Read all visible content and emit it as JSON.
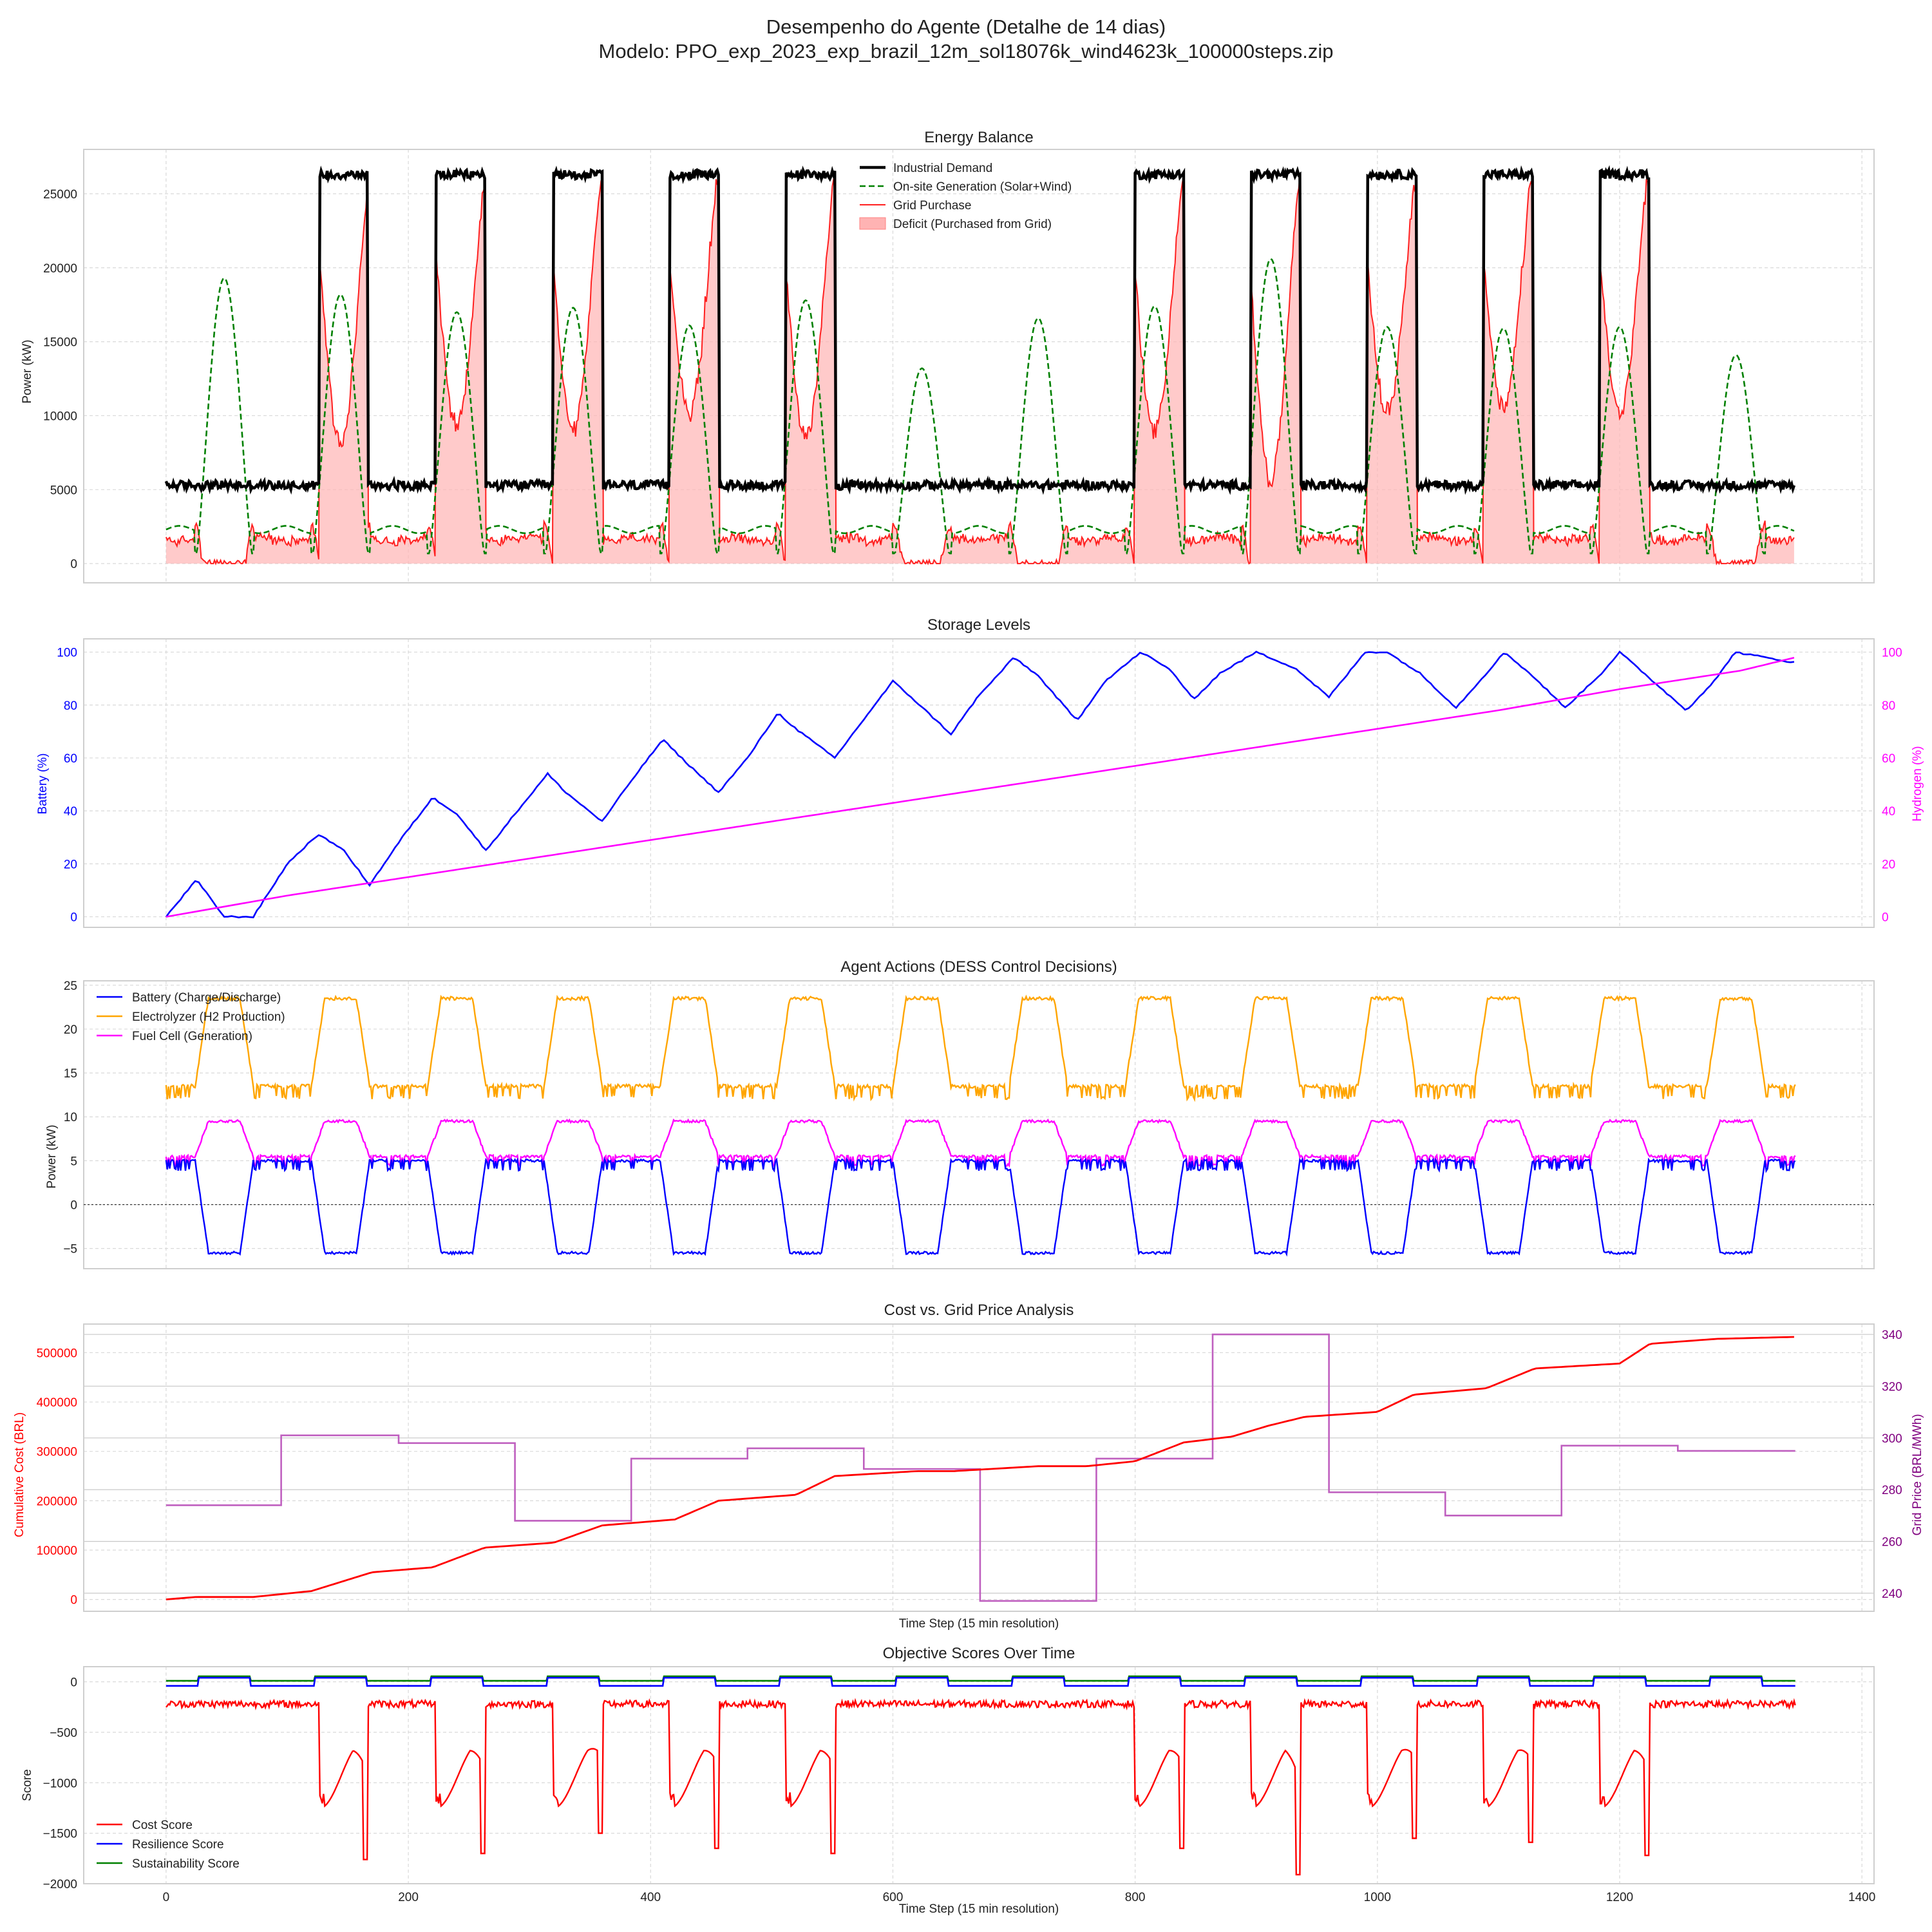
{
  "figure": {
    "title_line1": "Desempenho do Agente (Detalhe de 14 dias)",
    "title_line2": "Modelo: PPO_exp_2023_exp_brazil_12m_sol18076k_wind4623k_100000steps.zip"
  },
  "colors": {
    "demand": "#000000",
    "generation": "#008000",
    "grid": "#ff2020",
    "deficit_fill": "#ffb3b3",
    "battery": "#0000ff",
    "hydrogen": "#ff00ff",
    "electrolyzer": "#ffa500",
    "fuel_cell": "#ff00ff",
    "cost": "#ff0000",
    "price": "#bf5fbf",
    "resilience": "#0000ff",
    "sustainability": "#008000",
    "grid_lines": "#d9d9d9",
    "axes_border": "#cfcfcf"
  },
  "chart_data": [
    {
      "id": "energy",
      "type": "line",
      "title": "Energy Balance",
      "xlabel": "",
      "ylabel": "Power (kW)",
      "xlim": [
        -68,
        1410
      ],
      "ylim": [
        -1300,
        28000
      ],
      "yticks": [
        0,
        5000,
        10000,
        15000,
        20000,
        25000
      ],
      "xticks": [
        0,
        200,
        400,
        600,
        800,
        1000,
        1200,
        1400
      ],
      "show_x_ticklabels": false,
      "grid": true,
      "legend_position": "top-center",
      "legend": [
        "Industrial Demand",
        "On-site Generation (Solar+Wind)",
        "Grid Purchase",
        "Deficit (Purchased from Grid)"
      ],
      "signal": {
        "n_points": 1345,
        "demand": {
          "high_blocks": [
            [
              127,
              166
            ],
            [
              223,
              263
            ],
            [
              320,
              360
            ],
            [
              416,
              456
            ],
            [
              512,
              552
            ],
            [
              800,
              840
            ],
            [
              896,
              936
            ],
            [
              992,
              1032
            ],
            [
              1088,
              1128
            ],
            [
              1184,
              1224
            ]
          ],
          "low": 5300,
          "high": 26300,
          "noise": 300
        },
        "generation": {
          "peaks": [
            [
              48,
              19300,
              24
            ],
            [
              144,
              18200,
              24
            ],
            [
              240,
              17000,
              24
            ],
            [
              336,
              17300,
              24
            ],
            [
              432,
              16100,
              24
            ],
            [
              528,
              17800,
              24
            ],
            [
              624,
              13200,
              24
            ],
            [
              720,
              16600,
              24
            ],
            [
              816,
              17400,
              24
            ],
            [
              912,
              20600,
              24
            ],
            [
              1008,
              16000,
              24
            ],
            [
              1104,
              15900,
              24
            ],
            [
              1200,
              16000,
              24
            ],
            [
              1296,
              14100,
              24
            ]
          ],
          "night": 2300
        }
      }
    },
    {
      "id": "storage",
      "type": "line",
      "title": "Storage Levels",
      "xlabel": "",
      "ylabel": "Battery (%)",
      "ylabel_right": "Hydrogen (%)",
      "xlim": [
        -68,
        1410
      ],
      "ylim": [
        -4,
        105
      ],
      "yticks": [
        0,
        20,
        40,
        60,
        80,
        100
      ],
      "grid": true,
      "series": [
        {
          "name": "Battery",
          "x": [
            0,
            25,
            48,
            72,
            100,
            125,
            145,
            168,
            195,
            220,
            240,
            264,
            290,
            315,
            330,
            360,
            385,
            410,
            430,
            456,
            480,
            505,
            520,
            552,
            575,
            600,
            615,
            648,
            670,
            700,
            720,
            752,
            775,
            805,
            830,
            848,
            870,
            900,
            932,
            960,
            990,
            1008,
            1035,
            1065,
            1090,
            1105,
            1128,
            1155,
            1185,
            1200,
            1225,
            1255,
            1280,
            1295,
            1345
          ],
          "values": [
            0,
            14,
            0,
            0,
            20,
            31,
            26,
            12,
            30,
            45,
            39,
            25,
            40,
            54,
            47,
            36,
            52,
            67,
            58,
            47,
            60,
            77,
            71,
            60,
            74,
            89,
            83,
            69,
            83,
            98,
            91,
            74,
            89,
            100,
            93,
            82,
            92,
            100,
            94,
            83,
            100,
            100,
            92,
            79,
            92,
            100,
            91,
            79,
            92,
            100,
            90,
            78,
            90,
            100,
            96
          ]
        },
        {
          "name": "Hydrogen",
          "x": [
            0,
            100,
            200,
            300,
            400,
            500,
            600,
            700,
            800,
            900,
            1000,
            1100,
            1200,
            1300,
            1345
          ],
          "values": [
            0,
            8,
            15,
            22,
            29,
            36,
            43,
            50,
            57,
            64,
            71,
            78,
            86,
            93,
            98
          ]
        }
      ]
    },
    {
      "id": "actions",
      "type": "line",
      "title": "Agent Actions (DESS Control Decisions)",
      "xlabel": "",
      "ylabel": "Power (kW)",
      "xlim": [
        -68,
        1410
      ],
      "ylim": [
        -7.3,
        25.5
      ],
      "yticks": [
        -5,
        0,
        5,
        10,
        15,
        20,
        25
      ],
      "grid": true,
      "legend_position": "top-left",
      "legend": [
        "Battery (Charge/Discharge)",
        "Electrolyzer (H2 Production)",
        "Fuel Cell (Generation)"
      ],
      "levels": {
        "battery_night": 5,
        "battery_day": -5.5,
        "electrolyzer_night": 13.5,
        "electrolyzer_day": 23.5,
        "fuel_cell_night": 5.5,
        "fuel_cell_day": 9.5
      }
    },
    {
      "id": "cost",
      "type": "line",
      "title": "Cost vs. Grid Price Analysis",
      "xlabel": "Time Step (15 min resolution)",
      "ylabel": "Cumulative Cost (BRL)",
      "ylabel_right": "Grid Price (BRL/MWh)",
      "xlim": [
        -68,
        1410
      ],
      "ylim": [
        -24000,
        558000
      ],
      "ylim_right": [
        233,
        344
      ],
      "yticks": [
        0,
        100000,
        200000,
        300000,
        400000,
        500000
      ],
      "yticks_right": [
        240,
        260,
        280,
        300,
        320,
        340
      ],
      "grid": true,
      "series": [
        {
          "name": "Cumulative Cost",
          "x": [
            0,
            25,
            72,
            120,
            170,
            220,
            263,
            320,
            360,
            420,
            456,
            520,
            552,
            620,
            650,
            720,
            760,
            800,
            840,
            880,
            910,
            940,
            1000,
            1030,
            1090,
            1130,
            1200,
            1225,
            1280,
            1345
          ],
          "values": [
            0,
            5000,
            5000,
            17000,
            55000,
            65000,
            105000,
            115000,
            150000,
            162000,
            200000,
            212000,
            250000,
            260000,
            260000,
            270000,
            270000,
            280000,
            318000,
            330000,
            352000,
            370000,
            380000,
            415000,
            428000,
            468000,
            478000,
            518000,
            528000,
            532000
          ]
        },
        {
          "name": "Grid Price",
          "steps": [
            [
              0,
              95,
              274
            ],
            [
              95,
              192,
              301
            ],
            [
              192,
              288,
              298
            ],
            [
              288,
              384,
              268
            ],
            [
              384,
              480,
              292
            ],
            [
              480,
              576,
              296
            ],
            [
              576,
              672,
              288
            ],
            [
              672,
              768,
              237
            ],
            [
              768,
              864,
              292
            ],
            [
              864,
              960,
              340
            ],
            [
              960,
              1056,
              279
            ],
            [
              1056,
              1152,
              270
            ],
            [
              1152,
              1248,
              297
            ],
            [
              1248,
              1345,
              295
            ]
          ]
        }
      ]
    },
    {
      "id": "scores",
      "type": "line",
      "title": "Objective Scores Over Time",
      "xlabel": "Time Step (15 min resolution)",
      "ylabel": "Score",
      "xlim": [
        -68,
        1410
      ],
      "ylim": [
        -2000,
        150
      ],
      "yticks": [
        -2000,
        -1500,
        -1000,
        -500,
        0
      ],
      "xticks": [
        0,
        200,
        400,
        600,
        800,
        1000,
        1200,
        1400
      ],
      "grid": true,
      "legend_position": "bottom-left",
      "legend": [
        "Cost Score",
        "Resilience Score",
        "Sustainability Score"
      ],
      "cost_score_dips": [
        [
          127,
          166,
          -1760
        ],
        [
          223,
          263,
          -1700
        ],
        [
          320,
          360,
          -1500
        ],
        [
          416,
          456,
          -1650
        ],
        [
          512,
          552,
          -1700
        ],
        [
          800,
          840,
          -1650
        ],
        [
          896,
          936,
          -1910
        ],
        [
          992,
          1032,
          -1550
        ],
        [
          1088,
          1128,
          -1590
        ],
        [
          1184,
          1224,
          -1720
        ]
      ],
      "cost_score_base": -220
    }
  ]
}
